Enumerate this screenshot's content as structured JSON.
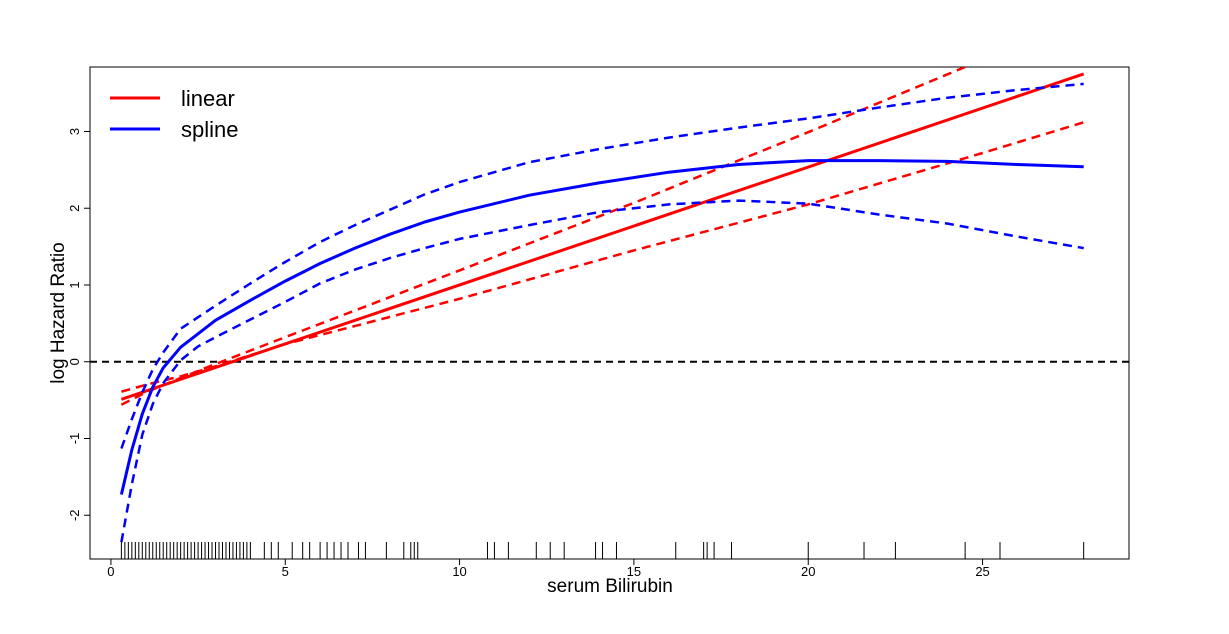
{
  "chart_data": {
    "type": "line",
    "xlabel": "serum Bilirubin",
    "ylabel": "log Hazard Ratio",
    "xlim": [
      -0.6,
      29.2
    ],
    "ylim": [
      -2.57,
      3.84
    ],
    "x_ticks": [
      0,
      5,
      10,
      15,
      20,
      25
    ],
    "y_ticks": [
      -2,
      -1,
      0,
      1,
      2,
      3
    ],
    "x_tick_labels": [
      "0",
      "5",
      "10",
      "15",
      "20",
      "25"
    ],
    "y_tick_labels": [
      "-2",
      "-1",
      "0",
      "1",
      "2",
      "3"
    ],
    "reference_line": {
      "y": 0,
      "style": "dashed",
      "color": "#000000"
    },
    "legend": {
      "position": "top-left",
      "entries": [
        {
          "label": "linear",
          "color": "#ff0000"
        },
        {
          "label": "spline",
          "color": "#0000ff"
        }
      ]
    },
    "series": [
      {
        "name": "linear",
        "role": "estimate",
        "style": "solid",
        "color": "#ff0000",
        "x": [
          0.3,
          27.9
        ],
        "y": [
          -0.49,
          3.75
        ]
      },
      {
        "role": "lower-ci",
        "style": "dashed",
        "color": "#ff0000",
        "x": [
          0.3,
          1.0,
          2.0,
          3.0,
          5.0,
          10.0,
          15.0,
          20.0,
          25.0,
          27.9
        ],
        "y": [
          -0.39,
          -0.3,
          -0.19,
          -0.06,
          0.23,
          0.82,
          1.45,
          2.05,
          2.72,
          3.12
        ]
      },
      {
        "role": "upper-ci",
        "style": "dashed",
        "color": "#ff0000",
        "x": [
          0.3,
          1.0,
          2.0,
          3.0,
          5.0,
          10.0,
          15.0,
          20.0,
          24.5
        ],
        "y": [
          -0.56,
          -0.4,
          -0.21,
          -0.03,
          0.32,
          1.19,
          2.07,
          2.99,
          3.84
        ]
      },
      {
        "name": "spline",
        "role": "estimate",
        "style": "solid",
        "color": "#0000ff",
        "x": [
          0.3,
          0.6,
          0.9,
          1.2,
          1.5,
          2.0,
          3.0,
          4.0,
          5.0,
          6.0,
          7.0,
          8.0,
          9.0,
          10.0,
          12.0,
          14.0,
          16.0,
          18.0,
          20.0,
          22.0,
          24.0,
          26.0,
          27.9
        ],
        "y": [
          -1.73,
          -1.15,
          -0.68,
          -0.33,
          -0.08,
          0.19,
          0.54,
          0.8,
          1.05,
          1.28,
          1.48,
          1.66,
          1.82,
          1.95,
          2.17,
          2.33,
          2.47,
          2.57,
          2.62,
          2.62,
          2.61,
          2.57,
          2.54
        ]
      },
      {
        "role": "lower-ci",
        "style": "dashed",
        "color": "#0000ff",
        "x": [
          0.3,
          0.6,
          0.9,
          1.2,
          1.5,
          2.0,
          2.5,
          3.0,
          4.0,
          5.0,
          6.0,
          7.0,
          8.0,
          9.0,
          10.0,
          12.0,
          14.0,
          16.0,
          18.0,
          20.0,
          22.0,
          24.0,
          26.0,
          27.9
        ],
        "y": [
          -2.35,
          -1.6,
          -0.95,
          -0.55,
          -0.28,
          0.02,
          0.2,
          0.32,
          0.55,
          0.78,
          1.02,
          1.2,
          1.35,
          1.48,
          1.6,
          1.78,
          1.95,
          2.05,
          2.1,
          2.06,
          1.92,
          1.8,
          1.63,
          1.48
        ]
      },
      {
        "role": "upper-ci",
        "style": "dashed",
        "color": "#0000ff",
        "x": [
          0.3,
          0.6,
          0.9,
          1.2,
          1.5,
          2.0,
          3.0,
          4.0,
          5.0,
          6.0,
          7.0,
          8.0,
          9.0,
          10.0,
          12.0,
          14.0,
          16.0,
          18.0,
          20.0,
          22.0,
          24.0,
          26.0,
          27.9
        ],
        "y": [
          -1.13,
          -0.75,
          -0.4,
          -0.1,
          0.12,
          0.43,
          0.73,
          1.02,
          1.3,
          1.56,
          1.78,
          1.98,
          2.18,
          2.34,
          2.6,
          2.77,
          2.92,
          3.05,
          3.17,
          3.31,
          3.44,
          3.54,
          3.62
        ]
      }
    ],
    "rug": [
      0.3,
      0.4,
      0.5,
      0.6,
      0.7,
      0.8,
      0.9,
      1.0,
      1.1,
      1.2,
      1.3,
      1.4,
      1.5,
      1.6,
      1.7,
      1.8,
      1.9,
      2.0,
      2.1,
      2.2,
      2.3,
      2.4,
      2.5,
      2.6,
      2.7,
      2.8,
      2.9,
      3.0,
      3.1,
      3.2,
      3.3,
      3.4,
      3.5,
      3.6,
      3.7,
      3.8,
      3.9,
      4.0,
      4.4,
      4.6,
      4.8,
      5.2,
      5.5,
      5.7,
      6.0,
      6.2,
      6.4,
      6.6,
      6.8,
      7.1,
      7.3,
      7.9,
      8.4,
      8.6,
      8.7,
      8.8,
      10.8,
      11.0,
      11.4,
      12.2,
      12.6,
      13.0,
      13.9,
      14.1,
      14.5,
      16.2,
      17.0,
      17.1,
      17.3,
      17.8,
      20.0,
      21.6,
      22.5,
      24.5,
      25.5,
      27.9
    ]
  }
}
